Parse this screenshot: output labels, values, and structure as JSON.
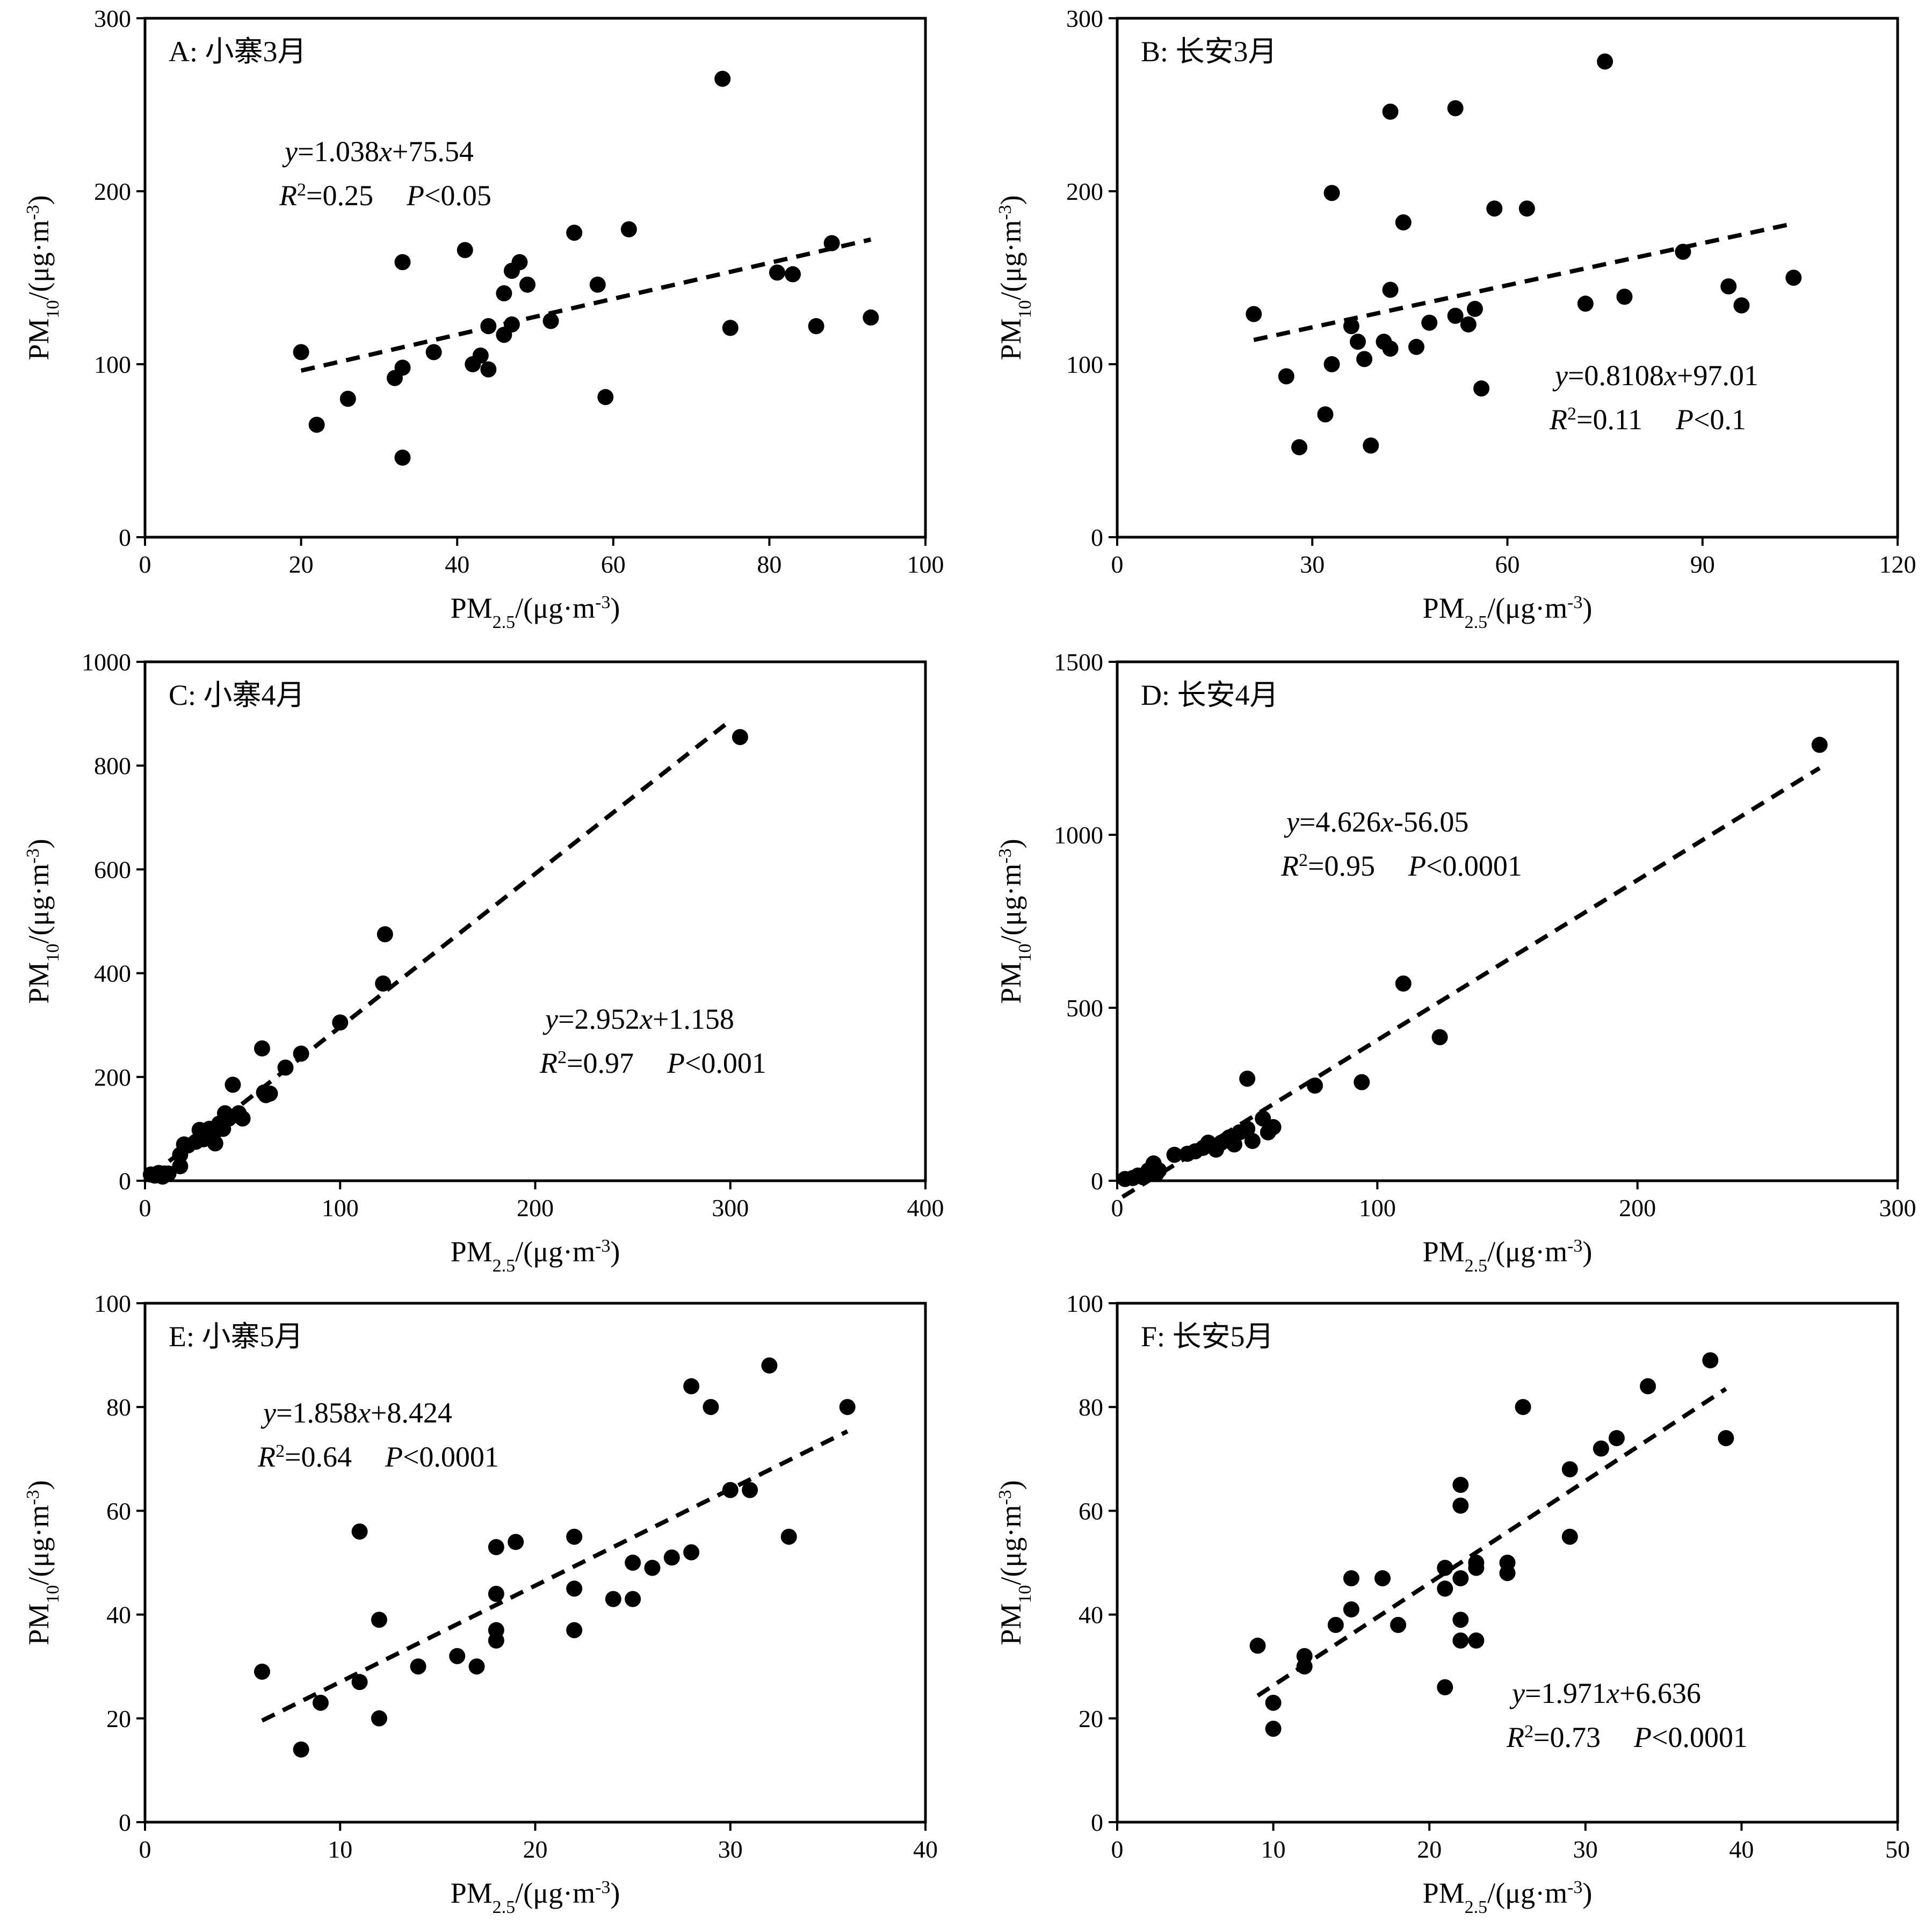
{
  "chart_data": [
    {
      "type": "scatter",
      "panel_label": "A: 小寨3月",
      "equation": {
        "y": "y",
        "eq1": "=1.038",
        "x": "x",
        "eq2": "+75.54",
        "r": "R",
        "r2": "=0.25",
        "p": "P",
        "pval": "<0.05"
      },
      "xlabel": {
        "main": "PM",
        "sub": "2.5",
        "unit_pre": "/(μg·m",
        "sup": "-3",
        "unit_post": ")"
      },
      "ylabel": {
        "main": "PM",
        "sub": "10",
        "unit_pre": "/(μg·m",
        "sup": "-3",
        "unit_post": ")"
      },
      "xlim": [
        0,
        100
      ],
      "ylim": [
        0,
        300
      ],
      "xticks": [
        0,
        20,
        40,
        60,
        80,
        100
      ],
      "yticks": [
        0,
        100,
        200,
        300
      ],
      "x": [
        20,
        22,
        26,
        32,
        33,
        33,
        33,
        37,
        41,
        42,
        43,
        44,
        44,
        46,
        46,
        47,
        47,
        48,
        49,
        52,
        55,
        58,
        59,
        62,
        74,
        75,
        81,
        83,
        86,
        88,
        93
      ],
      "y": [
        107,
        65,
        80,
        92,
        98,
        159,
        46,
        107,
        166,
        100,
        105,
        97,
        122,
        117,
        141,
        123,
        154,
        159,
        146,
        125,
        176,
        146,
        81,
        178,
        265,
        121,
        153,
        152,
        122,
        170,
        127
      ],
      "fit": {
        "slope": 1.038,
        "intercept": 75.54,
        "x_range": [
          20,
          93
        ]
      },
      "legend": "none",
      "grid": false
    },
    {
      "type": "scatter",
      "panel_label": "B: 长安3月",
      "equation": {
        "y": "y",
        "eq1": "=0.8108",
        "x": "x",
        "eq2": "+97.01",
        "r": "R",
        "r2": "=0.11",
        "p": "P",
        "pval": "<0.1"
      },
      "xlabel": {
        "main": "PM",
        "sub": "2.5",
        "unit_pre": "/(μg·m",
        "sup": "-3",
        "unit_post": ")"
      },
      "ylabel": {
        "main": "PM",
        "sub": "10",
        "unit_pre": "/(μg·m",
        "sup": "-3",
        "unit_post": ")"
      },
      "xlim": [
        0,
        120
      ],
      "ylim": [
        0,
        300
      ],
      "xticks": [
        0,
        30,
        60,
        90,
        120
      ],
      "yticks": [
        0,
        100,
        200,
        300
      ],
      "x": [
        21,
        26,
        28,
        32,
        33,
        33,
        36,
        37,
        38,
        39,
        41,
        42,
        42,
        42,
        44,
        46,
        48,
        52,
        52,
        54,
        55,
        56,
        58,
        63,
        72,
        75,
        78,
        87,
        94,
        96,
        104
      ],
      "y": [
        129,
        93,
        52,
        71,
        100,
        199,
        122,
        113,
        103,
        53,
        113,
        109,
        143,
        246,
        182,
        110,
        124,
        128,
        248,
        123,
        132,
        86,
        190,
        190,
        135,
        275,
        139,
        165,
        145,
        134,
        150
      ],
      "fit": {
        "slope": 0.8108,
        "intercept": 97.01,
        "x_range": [
          21,
          104
        ]
      },
      "legend": "none",
      "grid": false
    },
    {
      "type": "scatter",
      "panel_label": "C: 小寨4月",
      "equation": {
        "y": "y",
        "eq1": "=2.952",
        "x": "x",
        "eq2": "+1.158",
        "r": "R",
        "r2": "=0.97",
        "p": "P",
        "pval": "<0.001"
      },
      "xlabel": {
        "main": "PM",
        "sub": "2.5",
        "unit_pre": "/(μg·m",
        "sup": "-3",
        "unit_post": ")"
      },
      "ylabel": {
        "main": "PM",
        "sub": "10",
        "unit_pre": "/(μg·m",
        "sup": "-3",
        "unit_post": ")"
      },
      "xlim": [
        0,
        400
      ],
      "ylim": [
        0,
        1000
      ],
      "xticks": [
        0,
        100,
        200,
        300,
        400
      ],
      "yticks": [
        0,
        200,
        400,
        600,
        800,
        1000
      ],
      "x": [
        3,
        5,
        7,
        9,
        10,
        12,
        18,
        18,
        20,
        22,
        26,
        28,
        30,
        33,
        35,
        36,
        38,
        40,
        41,
        43,
        45,
        48,
        50,
        60,
        61,
        62,
        64,
        72,
        80,
        100,
        122,
        123,
        305
      ],
      "y": [
        12,
        10,
        15,
        8,
        14,
        14,
        28,
        50,
        70,
        68,
        75,
        98,
        80,
        100,
        90,
        72,
        110,
        100,
        130,
        120,
        185,
        130,
        120,
        255,
        170,
        165,
        168,
        218,
        245,
        305,
        380,
        475,
        855
      ],
      "fit": {
        "slope": 2.952,
        "intercept": 1.158,
        "x_range": [
          3,
          300
        ]
      },
      "legend": "none",
      "grid": false
    },
    {
      "type": "scatter",
      "panel_label": "D: 长安4月",
      "equation": {
        "y": "y",
        "eq1": "=4.626",
        "x": "x",
        "eq2": "-56.05",
        "r": "R",
        "r2": "=0.95",
        "p": "P",
        "pval": "<0.0001"
      },
      "xlabel": {
        "main": "PM",
        "sub": "2.5",
        "unit_pre": "/(μg·m",
        "sup": "-3",
        "unit_post": ")"
      },
      "ylabel": {
        "main": "PM",
        "sub": "10",
        "unit_pre": "/(μg·m",
        "sup": "-3",
        "unit_post": ")"
      },
      "xlim": [
        0,
        300
      ],
      "ylim": [
        0,
        1500
      ],
      "xticks": [
        0,
        100,
        200,
        300
      ],
      "yticks": [
        0,
        500,
        1000,
        1500
      ],
      "x": [
        3,
        6,
        8,
        10,
        12,
        14,
        15,
        16,
        22,
        27,
        30,
        33,
        35,
        38,
        40,
        43,
        45,
        47,
        50,
        50,
        52,
        56,
        58,
        60,
        76,
        94,
        110,
        124,
        270
      ],
      "y": [
        5,
        8,
        15,
        10,
        30,
        50,
        20,
        30,
        75,
        78,
        85,
        95,
        110,
        90,
        110,
        125,
        105,
        140,
        150,
        295,
        115,
        180,
        140,
        155,
        275,
        285,
        570,
        415,
        1260
      ],
      "fit": {
        "slope": 4.626,
        "intercept": -56.05,
        "x_range": [
          2,
          270
        ]
      },
      "legend": "none",
      "grid": false
    },
    {
      "type": "scatter",
      "panel_label": "E: 小寨5月",
      "equation": {
        "y": "y",
        "eq1": "=1.858",
        "x": "x",
        "eq2": "+8.424",
        "r": "R",
        "r2": "=0.64",
        "p": "P",
        "pval": "<0.0001"
      },
      "xlabel": {
        "main": "PM",
        "sub": "2.5",
        "unit_pre": "/(μg·m",
        "sup": "-3",
        "unit_post": ")"
      },
      "ylabel": {
        "main": "PM",
        "sub": "10",
        "unit_pre": "/(μg·m",
        "sup": "-3",
        "unit_post": ")"
      },
      "xlim": [
        0,
        40
      ],
      "ylim": [
        0,
        100
      ],
      "xticks": [
        0,
        10,
        20,
        30,
        40
      ],
      "yticks": [
        0,
        20,
        40,
        60,
        80,
        100
      ],
      "x": [
        6,
        8,
        9,
        11,
        11,
        12,
        12,
        14,
        16,
        17,
        18,
        18,
        18,
        18,
        19,
        22,
        22,
        22,
        24,
        25,
        25,
        26,
        27,
        28,
        28,
        29,
        30,
        31,
        32,
        33,
        36
      ],
      "y": [
        29,
        14,
        23,
        27,
        56,
        39,
        20,
        30,
        32,
        30,
        37,
        35,
        44,
        53,
        54,
        37,
        45,
        55,
        43,
        43,
        50,
        49,
        51,
        52,
        84,
        80,
        64,
        64,
        88,
        55,
        80
      ],
      "fit": {
        "slope": 1.858,
        "intercept": 8.424,
        "x_range": [
          6,
          36
        ]
      },
      "legend": "none",
      "grid": false
    },
    {
      "type": "scatter",
      "panel_label": "F: 长安5月",
      "equation": {
        "y": "y",
        "eq1": "=1.971",
        "x": "x",
        "eq2": "+6.636",
        "r": "R",
        "r2": "=0.73",
        "p": "P",
        "pval": "<0.0001"
      },
      "xlabel": {
        "main": "PM",
        "sub": "2.5",
        "unit_pre": "/(μg·m",
        "sup": "-3",
        "unit_post": ")"
      },
      "ylabel": {
        "main": "PM",
        "sub": "10",
        "unit_pre": "/(μg·m",
        "sup": "-3",
        "unit_post": ")"
      },
      "xlim": [
        0,
        50
      ],
      "ylim": [
        0,
        100
      ],
      "xticks": [
        0,
        10,
        20,
        30,
        40,
        50
      ],
      "yticks": [
        0,
        20,
        40,
        60,
        80,
        100
      ],
      "x": [
        9,
        10,
        10,
        12,
        12,
        14,
        15,
        15,
        17,
        18,
        21,
        21,
        21,
        22,
        22,
        22,
        22,
        22,
        23,
        23,
        23,
        25,
        25,
        26,
        29,
        29,
        31,
        32,
        34,
        38,
        39
      ],
      "y": [
        34,
        23,
        18,
        32,
        30,
        38,
        41,
        47,
        47,
        38,
        49,
        45,
        26,
        65,
        61,
        47,
        39,
        35,
        49,
        50,
        35,
        50,
        48,
        80,
        68,
        55,
        72,
        74,
        84,
        89,
        74
      ],
      "fit": {
        "slope": 1.971,
        "intercept": 6.636,
        "x_range": [
          9,
          39
        ]
      },
      "legend": "none",
      "grid": false
    }
  ]
}
